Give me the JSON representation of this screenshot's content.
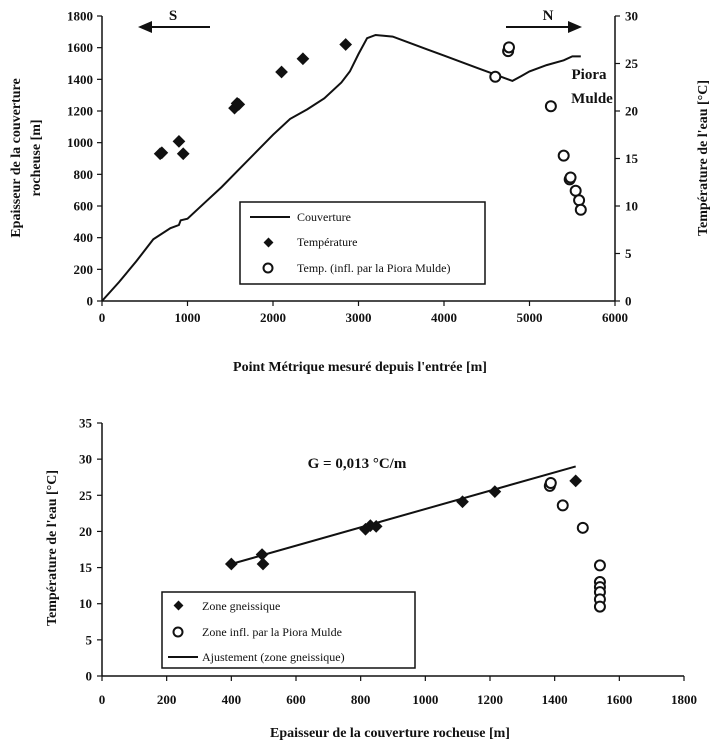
{
  "chart_data": [
    {
      "type": "line",
      "xlabel": "Point Métrique mesuré depuis l'entrée [m]",
      "ylabel_lines": [
        "Epaisseur de la couverture",
        "rocheuse [m]"
      ],
      "y2label": "Température de l'eau [°C]",
      "xlim": [
        0,
        6000
      ],
      "ylim": [
        0,
        1800
      ],
      "y2lim": [
        0,
        30
      ],
      "xticks": [
        "0",
        "1000",
        "2000",
        "3000",
        "4000",
        "5000",
        "6000"
      ],
      "yticks": [
        "0",
        "200",
        "400",
        "600",
        "800",
        "1000",
        "1200",
        "1400",
        "1600",
        "1800"
      ],
      "y2ticks": [
        "0",
        "5",
        "10",
        "15",
        "20",
        "25",
        "30"
      ],
      "series": [
        {
          "name": "Couverture",
          "kind": "line",
          "axis": "left",
          "points": [
            [
              0,
              0
            ],
            [
              200,
              120
            ],
            [
              400,
              250
            ],
            [
              600,
              390
            ],
            [
              800,
              460
            ],
            [
              900,
              480
            ],
            [
              920,
              510
            ],
            [
              1000,
              520
            ],
            [
              1200,
              620
            ],
            [
              1400,
              720
            ],
            [
              1600,
              830
            ],
            [
              1800,
              940
            ],
            [
              2000,
              1050
            ],
            [
              2200,
              1150
            ],
            [
              2400,
              1210
            ],
            [
              2600,
              1280
            ],
            [
              2800,
              1380
            ],
            [
              2900,
              1450
            ],
            [
              3000,
              1560
            ],
            [
              3100,
              1660
            ],
            [
              3200,
              1680
            ],
            [
              3400,
              1670
            ],
            [
              3600,
              1630
            ],
            [
              3800,
              1590
            ],
            [
              4000,
              1550
            ],
            [
              4200,
              1510
            ],
            [
              4400,
              1470
            ],
            [
              4600,
              1430
            ],
            [
              4700,
              1410
            ],
            [
              4800,
              1390
            ],
            [
              4900,
              1420
            ],
            [
              5000,
              1450
            ],
            [
              5200,
              1490
            ],
            [
              5400,
              1520
            ],
            [
              5500,
              1545
            ],
            [
              5600,
              1545
            ]
          ]
        },
        {
          "name": "Température",
          "kind": "scatter-filled",
          "axis": "right",
          "points": [
            [
              680,
              15.5
            ],
            [
              700,
              15.6
            ],
            [
              900,
              16.8
            ],
            [
              950,
              15.5
            ],
            [
              1550,
              20.3
            ],
            [
              1580,
              20.8
            ],
            [
              1600,
              20.7
            ],
            [
              2100,
              24.1
            ],
            [
              2350,
              25.5
            ],
            [
              2850,
              27.0
            ]
          ]
        },
        {
          "name": "Temp. (infl. par la Piora Mulde)",
          "kind": "scatter-open",
          "axis": "right",
          "points": [
            [
              4600,
              23.6
            ],
            [
              4750,
              26.3
            ],
            [
              4760,
              26.7
            ],
            [
              5250,
              20.5
            ],
            [
              5400,
              15.3
            ],
            [
              5470,
              12.8
            ],
            [
              5480,
              13.0
            ],
            [
              5540,
              11.6
            ],
            [
              5580,
              10.6
            ],
            [
              5600,
              9.6
            ]
          ]
        }
      ],
      "annotations": {
        "south": "S",
        "north": "N",
        "piora_line1": "Piora",
        "piora_line2": "Mulde"
      }
    },
    {
      "type": "scatter",
      "xlabel": "Epaisseur de la couverture rocheuse [m]",
      "ylabel": "Température de l'eau [°C]",
      "xlim": [
        0,
        1800
      ],
      "ylim": [
        0,
        35
      ],
      "xticks": [
        "0",
        "200",
        "400",
        "600",
        "800",
        "1000",
        "1200",
        "1400",
        "1600",
        "1800"
      ],
      "yticks": [
        "0",
        "5",
        "10",
        "15",
        "20",
        "25",
        "30",
        "35"
      ],
      "series": [
        {
          "name": "Zone gneissique",
          "kind": "scatter-filled",
          "points": [
            [
              400,
              15.5
            ],
            [
              495,
              16.8
            ],
            [
              498,
              15.5
            ],
            [
              815,
              20.3
            ],
            [
              830,
              20.8
            ],
            [
              848,
              20.7
            ],
            [
              1115,
              24.1
            ],
            [
              1215,
              25.5
            ],
            [
              1465,
              27.0
            ]
          ]
        },
        {
          "name": "Zone infl. par la Piora Mulde",
          "kind": "scatter-open",
          "points": [
            [
              1385,
              26.3
            ],
            [
              1388,
              26.7
            ],
            [
              1425,
              23.6
            ],
            [
              1487,
              20.5
            ],
            [
              1540,
              15.3
            ],
            [
              1540,
              13.0
            ],
            [
              1540,
              12.3
            ],
            [
              1540,
              11.6
            ],
            [
              1540,
              10.6
            ],
            [
              1540,
              9.6
            ]
          ]
        },
        {
          "name": "Ajustement (zone gneissique)",
          "kind": "line",
          "points": [
            [
              400,
              15.5
            ],
            [
              1465,
              29.0
            ]
          ]
        }
      ],
      "annotation": "G = 0,013 °C/m"
    }
  ]
}
